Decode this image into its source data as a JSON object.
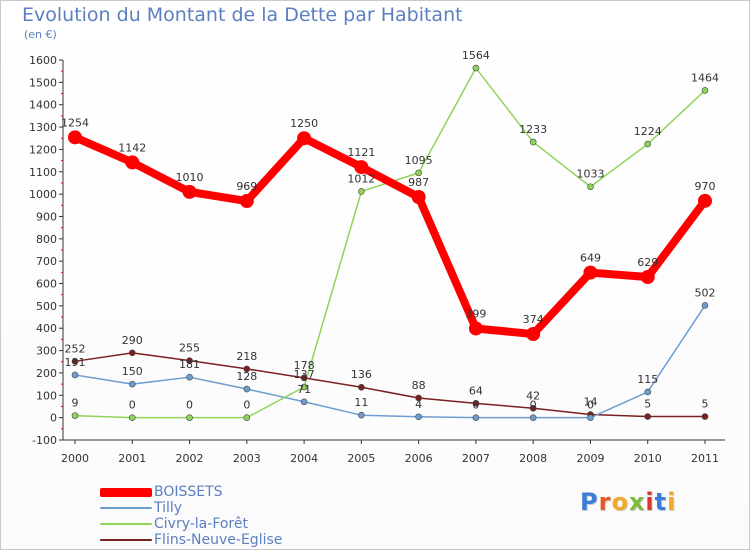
{
  "title": "Evolution du Montant de la Dette par Habitant",
  "subtitle": "(en €)",
  "logo": {
    "text": "Proxiti",
    "colors": [
      "#3b7dd8",
      "#e8562a",
      "#f3a72a",
      "#7fb93b",
      "#d8362d",
      "#3b7dd8",
      "#f3a72a"
    ]
  },
  "chart_data": {
    "type": "line",
    "x": [
      "2000",
      "2001",
      "2002",
      "2003",
      "2004",
      "2005",
      "2006",
      "2007",
      "2008",
      "2009",
      "2010",
      "2011"
    ],
    "ylim": [
      -100,
      1600
    ],
    "yticks": [
      "-100",
      "0",
      "100",
      "200",
      "300",
      "400",
      "500",
      "600",
      "700",
      "800",
      "900",
      "1000",
      "1100",
      "1200",
      "1300",
      "1400",
      "1500",
      "1600"
    ],
    "grid": false,
    "legend_position": "bottom-left",
    "series": [
      {
        "name": "BOISSETS",
        "color": "#ff0000",
        "width": 8,
        "marker": 7,
        "values": [
          1254,
          1142,
          1010,
          969,
          1250,
          1121,
          987,
          399,
          374,
          649,
          629,
          970
        ],
        "labels": [
          "1254",
          "1142",
          "1010",
          "969",
          "1250",
          "1121",
          "987",
          "399",
          "374",
          "649",
          "629",
          "970"
        ]
      },
      {
        "name": "Tilly",
        "color": "#6d9dcf",
        "width": 1.5,
        "marker": 3,
        "values": [
          191,
          150,
          181,
          128,
          71,
          11,
          4,
          0,
          0,
          0,
          115,
          502
        ],
        "labels": [
          "191",
          "150",
          "181",
          "128",
          "71",
          "11",
          "4",
          "0",
          "0",
          "0",
          "115",
          "502"
        ]
      },
      {
        "name": "Civry-la-Forêt",
        "color": "#8fd45a",
        "width": 1.5,
        "marker": 3,
        "values": [
          9,
          0,
          0,
          0,
          137,
          1012,
          1095,
          1564,
          1233,
          1033,
          1224,
          1464
        ],
        "labels": [
          "9",
          "0",
          "0",
          "0",
          "137",
          "1012",
          "1095",
          "1564",
          "1233",
          "1033",
          "1224",
          "1464"
        ]
      },
      {
        "name": "Flins-Neuve-Eglise",
        "color": "#7a2020",
        "width": 1.5,
        "marker": 3,
        "values": [
          252,
          290,
          255,
          218,
          178,
          136,
          88,
          64,
          42,
          14,
          5,
          5
        ],
        "labels": [
          "252",
          "290",
          "255",
          "218",
          "178",
          "136",
          "88",
          "64",
          "42",
          "14",
          "5",
          "5"
        ]
      }
    ]
  }
}
